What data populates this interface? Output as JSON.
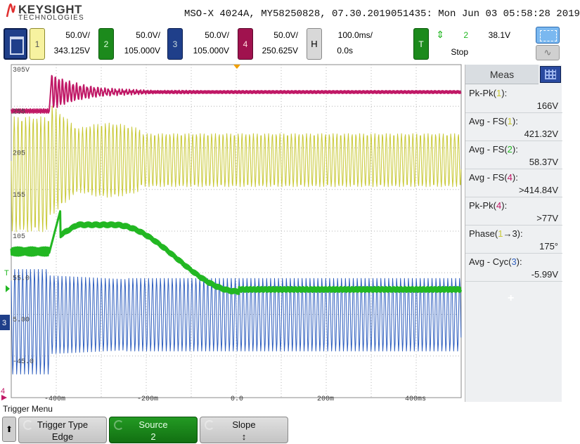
{
  "header": {
    "brand": "KEYSIGHT",
    "brand_sub": "TECHNOLOGIES",
    "title": "MSO-X 4024A, MY58250828, 07.30.2019051435: Mon Jun 03 05:58:28 2019"
  },
  "channels": [
    {
      "number": "1",
      "scale": "50.0V/",
      "offset": "343.125V",
      "color": "#c8c834"
    },
    {
      "number": "2",
      "scale": "50.0V/",
      "offset": "105.000V",
      "color": "#22b722"
    },
    {
      "number": "3",
      "scale": "50.0V/",
      "offset": "105.000V",
      "color": "#2f5fbf"
    },
    {
      "number": "4",
      "scale": "50.0V/",
      "offset": "250.625V",
      "color": "#c01866"
    }
  ],
  "horizontal": {
    "label": "H",
    "time_per_div": "100.0ms/",
    "delay": "0.0s"
  },
  "trigger_status": {
    "label": "T",
    "arrow": "⇕",
    "source": "2",
    "level": "38.1V",
    "state": "Stop"
  },
  "screen": {
    "y_labels": [
      "305V",
      "255",
      "205",
      "155",
      "105",
      "55.0",
      "5.00",
      "-45.0"
    ],
    "x_labels": [
      "-400m",
      "-200m",
      "0.0",
      "200m",
      "400ms"
    ],
    "markers": {
      "trig_level": "T",
      "ch3": "3",
      "ch4": "4"
    }
  },
  "measurements": {
    "title": "Meas",
    "items": [
      {
        "pre": "Pk-Pk(",
        "ch": "1",
        "post": "):",
        "value": "166V",
        "ch_color": "#c8c834"
      },
      {
        "pre": "Avg - FS(",
        "ch": "1",
        "post": "):",
        "value": "421.32V",
        "ch_color": "#c8c834"
      },
      {
        "pre": "Avg - FS(",
        "ch": "2",
        "post": "):",
        "value": "58.37V",
        "ch_color": "#22b722"
      },
      {
        "pre": "Avg - FS(",
        "ch": "4",
        "post": "):",
        "value": ">414.84V",
        "ch_color": "#c01866"
      },
      {
        "pre": "Pk-Pk(",
        "ch": "4",
        "post": "):",
        "value": ">77V",
        "ch_color": "#c01866"
      },
      {
        "pre": "Phase(",
        "ch": "1",
        "post": "→3):",
        "value": "175°",
        "ch_color": "#c8c834"
      },
      {
        "pre": "Avg - Cyc(",
        "ch": "3",
        "post": "):",
        "value": "-5.99V",
        "ch_color": "#2f5fbf"
      }
    ],
    "add_symbol": "+"
  },
  "softkeys": {
    "menu_title": "Trigger Menu",
    "back": "⬆",
    "items": [
      {
        "label": "Trigger Type",
        "value": "Edge",
        "style": "gray"
      },
      {
        "label": "Source",
        "value": "2",
        "style": "green"
      },
      {
        "label": "Slope",
        "value": "↕",
        "style": "gray"
      }
    ]
  }
}
